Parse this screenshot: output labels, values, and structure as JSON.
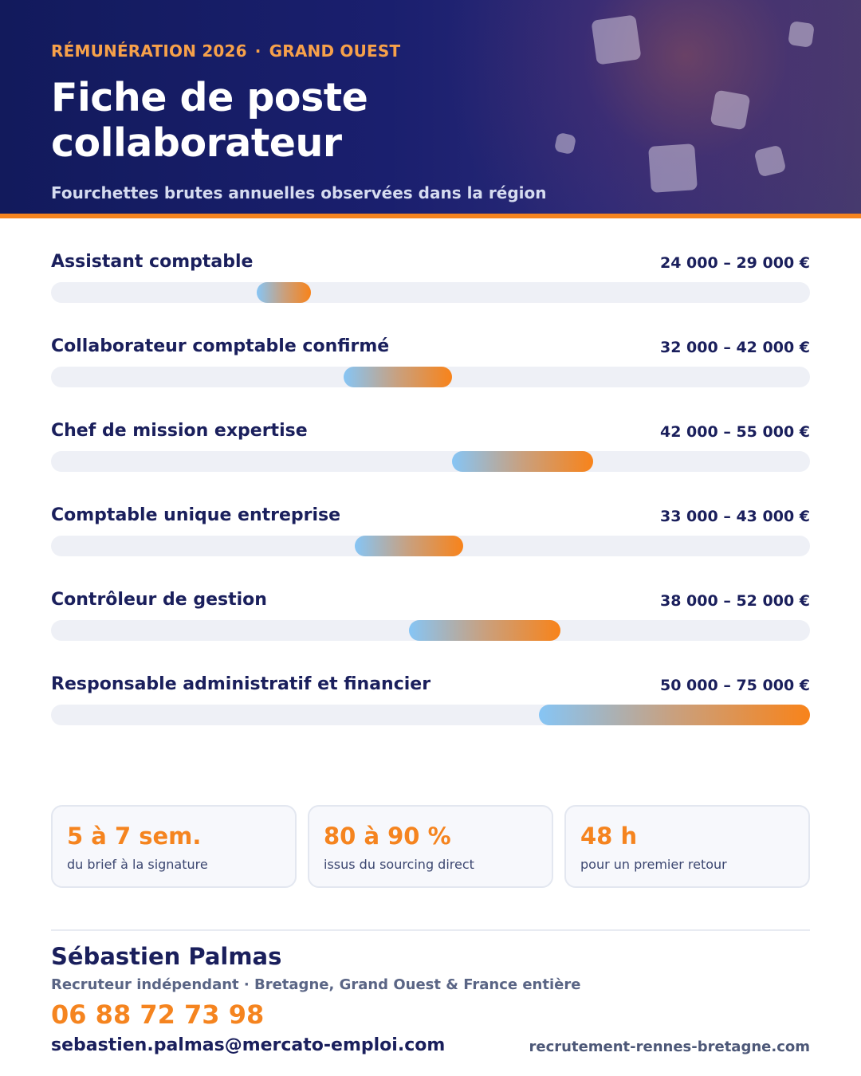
{
  "header": {
    "kicker_left": "RÉMUNÉRATION 2026",
    "kicker_sep": "·",
    "kicker_right": "GRAND OUEST",
    "title": "Fiche de poste collaborateur",
    "subtitle": "Fourchettes brutes annuelles observées dans la région"
  },
  "chart_data": {
    "type": "bar",
    "orientation": "horizontal-range",
    "unit": "€",
    "xlim": [
      0,
      75000
    ],
    "grid": false,
    "series": [
      {
        "label": "Assistant comptable",
        "min": 24000,
        "max": 29000,
        "range_text": "24 000 – 29 000 €"
      },
      {
        "label": "Collaborateur comptable confirmé",
        "min": 32000,
        "max": 42000,
        "range_text": "32 000 – 42 000 €"
      },
      {
        "label": "Chef de mission expertise",
        "min": 42000,
        "max": 55000,
        "range_text": "42 000 – 55 000 €"
      },
      {
        "label": "Comptable unique entreprise",
        "min": 33000,
        "max": 43000,
        "range_text": "33 000 – 43 000 €"
      },
      {
        "label": "Contrôleur de gestion",
        "min": 38000,
        "max": 52000,
        "range_text": "38 000 – 52 000 €"
      },
      {
        "label": "Responsable administratif et financier",
        "min": 50000,
        "max": 75000,
        "range_text": "50 000 – 75 000 €"
      }
    ]
  },
  "stats": [
    {
      "value": "5 à 7 sem.",
      "caption": "du brief à la signature"
    },
    {
      "value": "80 à 90 %",
      "caption": "issus du sourcing direct"
    },
    {
      "value": "48 h",
      "caption": "pour un premier retour"
    }
  ],
  "contact": {
    "name": "Sébastien Palmas",
    "role": "Recruteur indépendant · Bretagne, Grand Ouest & France entière",
    "phone": "06 88 72 73 98",
    "email": "sebastien.palmas@mercato-emploi.com",
    "website": "recrutement-rennes-bretagne.com"
  },
  "colors": {
    "navy": "#1a1f5c",
    "orange": "#f5841f",
    "bar_start": "#86c5f5",
    "bar_end": "#f8831a",
    "track": "#eef0f6"
  }
}
